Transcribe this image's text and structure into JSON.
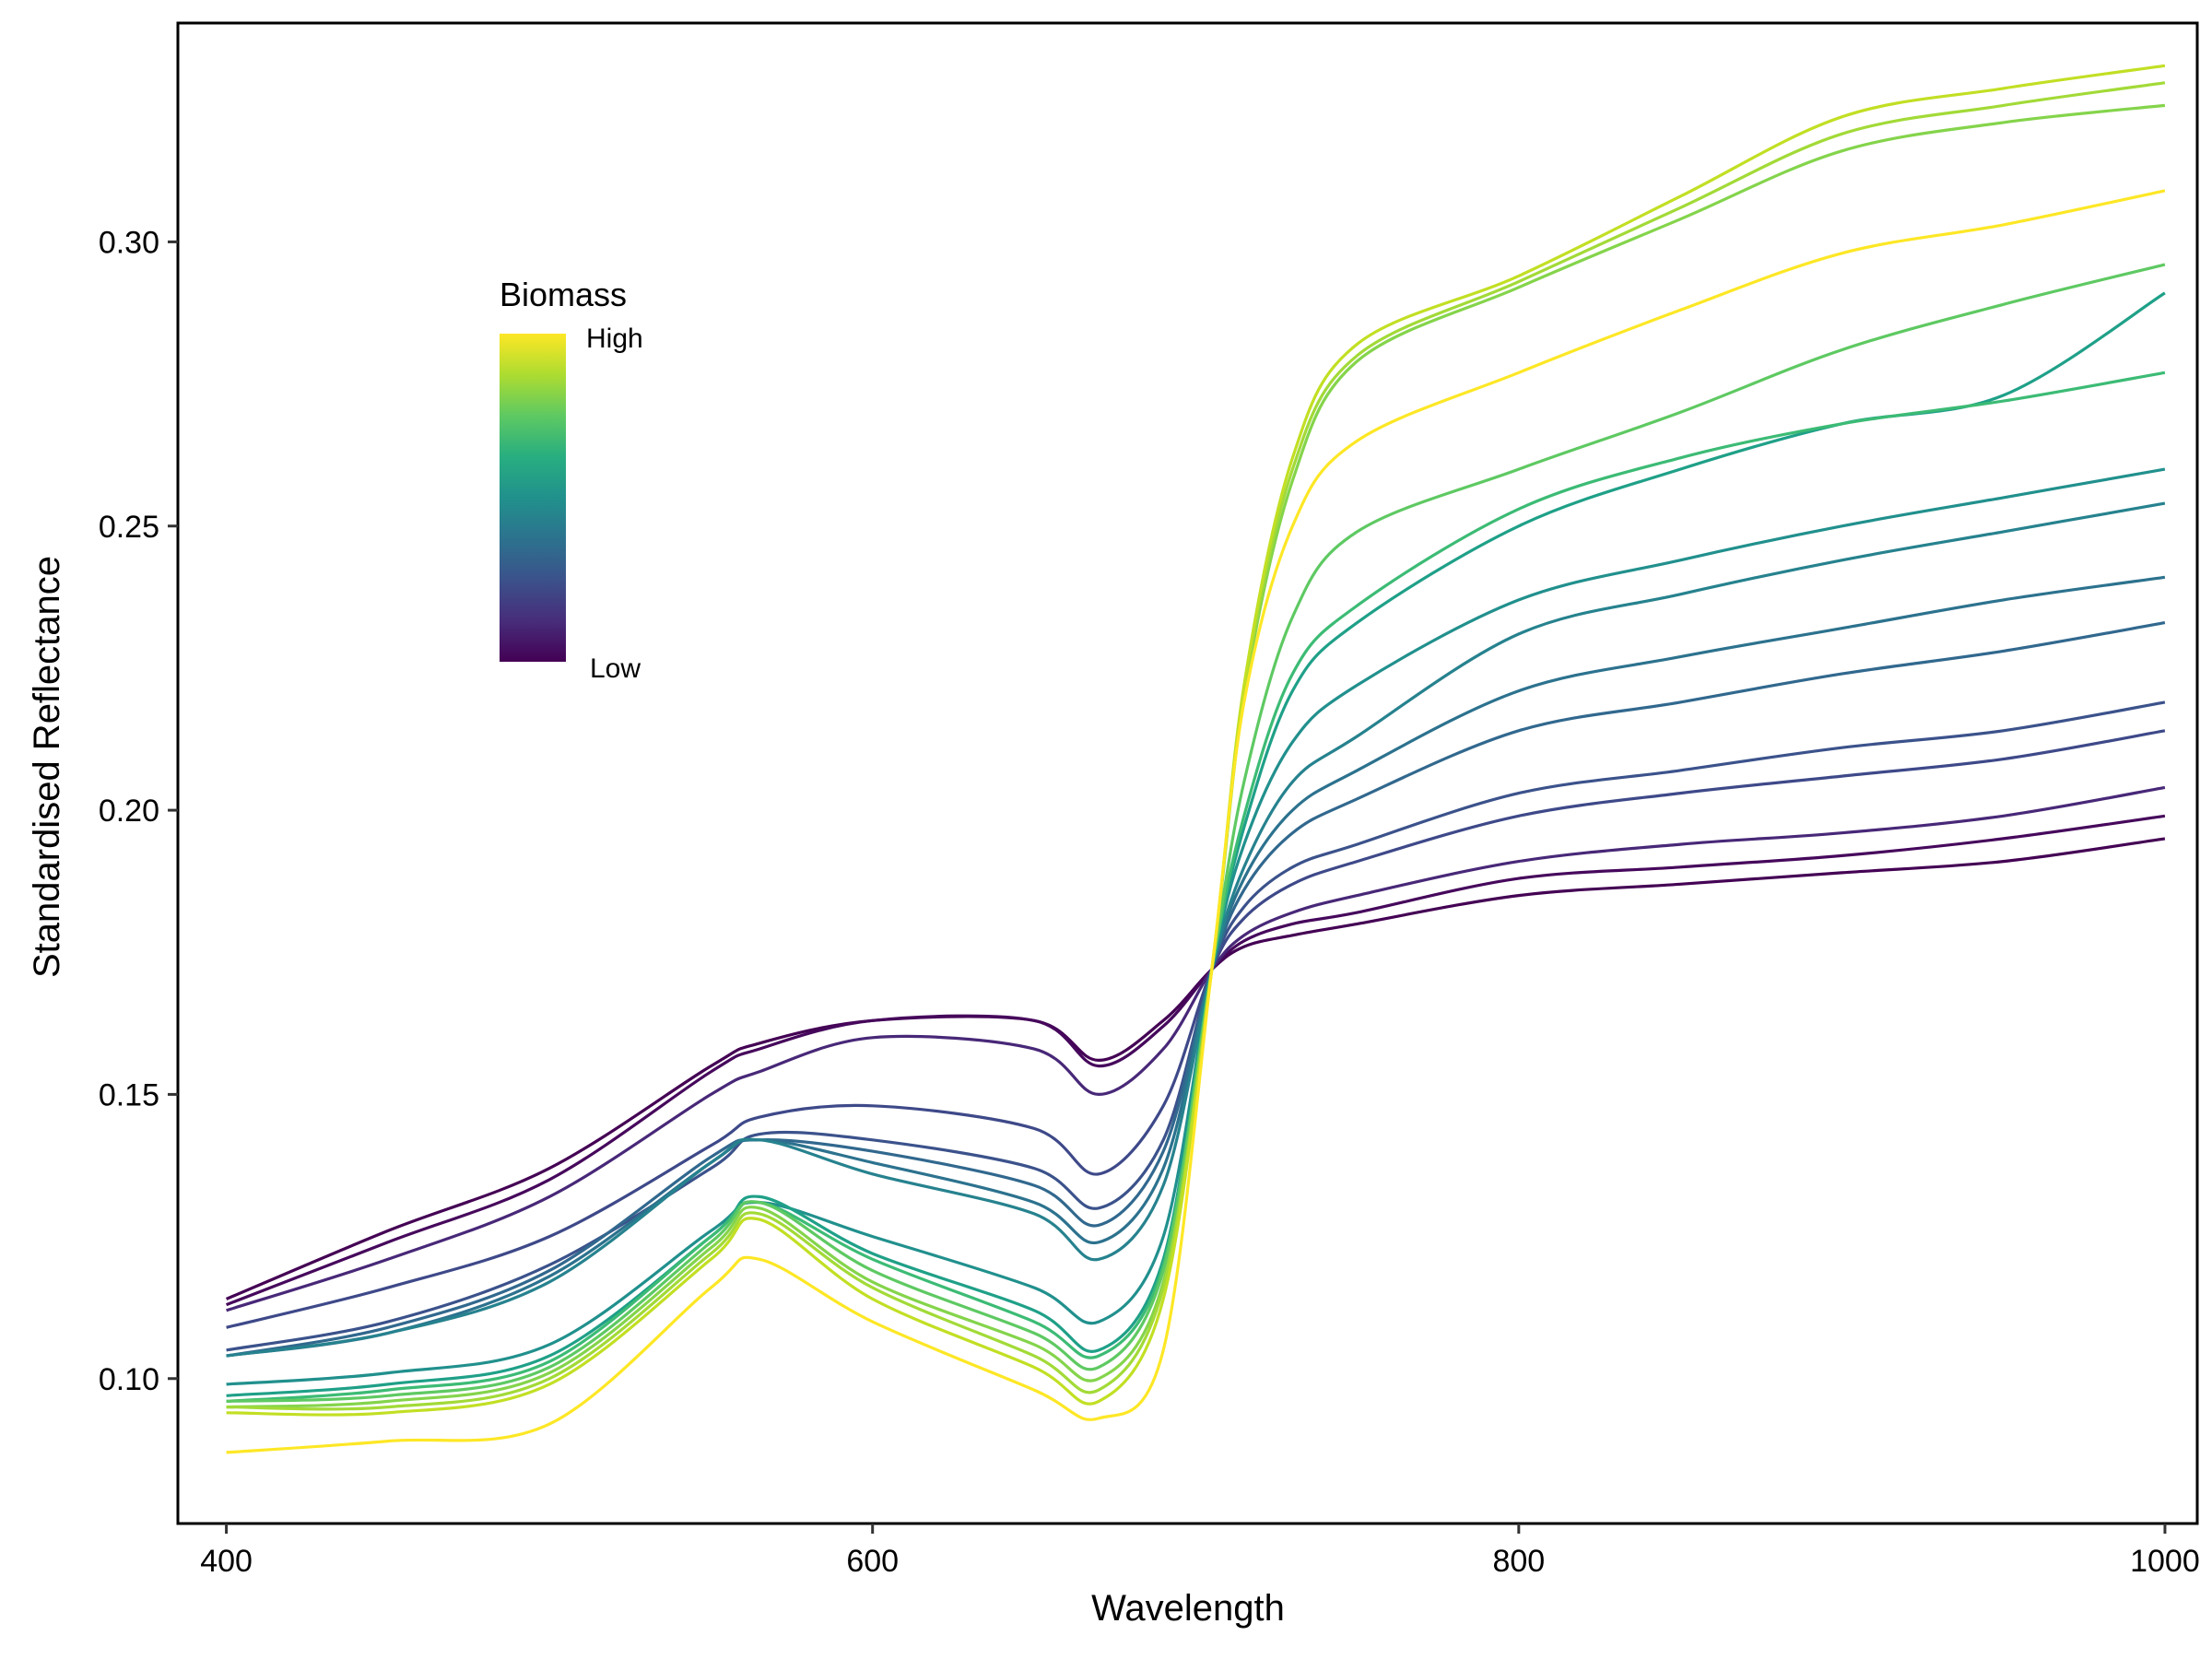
{
  "chart_data": {
    "type": "line",
    "title": "",
    "xlabel": "Wavelength",
    "ylabel": "Standardised Reflectance",
    "xlim": [
      385,
      1010
    ],
    "ylim": [
      0.0745,
      0.3385
    ],
    "x_ticks": [
      400,
      600,
      800,
      1000
    ],
    "x_tick_labels": [
      "400",
      "600",
      "800",
      "1000"
    ],
    "y_ticks": [
      0.1,
      0.15,
      0.2,
      0.25,
      0.3
    ],
    "y_tick_labels": [
      "0.10",
      "0.15",
      "0.20",
      "0.25",
      "0.30"
    ],
    "grid": false,
    "legend": {
      "title": "Biomass",
      "high_label": "High",
      "low_label": "Low",
      "placement": "top-left",
      "colors": [
        "#440154",
        "#472d7b",
        "#3b528b",
        "#2c728e",
        "#21918c",
        "#28ae80",
        "#5ec962",
        "#addc30",
        "#fde725"
      ]
    },
    "x": [
      400,
      450,
      500,
      550,
      565,
      600,
      650,
      670,
      690,
      705,
      715,
      730,
      750,
      800,
      850,
      900,
      950,
      1000
    ],
    "series": [
      {
        "color": "#440154",
        "values": [
          0.114,
          0.126,
          0.137,
          0.155,
          0.159,
          0.163,
          0.163,
          0.156,
          0.163,
          0.172,
          0.176,
          0.178,
          0.18,
          0.185,
          0.187,
          0.189,
          0.191,
          0.195
        ]
      },
      {
        "color": "#46085c",
        "values": [
          0.113,
          0.124,
          0.135,
          0.154,
          0.158,
          0.163,
          0.163,
          0.155,
          0.162,
          0.172,
          0.177,
          0.18,
          0.182,
          0.188,
          0.19,
          0.192,
          0.195,
          0.199
        ]
      },
      {
        "color": "#482878",
        "values": [
          0.112,
          0.121,
          0.132,
          0.15,
          0.154,
          0.16,
          0.158,
          0.15,
          0.158,
          0.172,
          0.178,
          0.182,
          0.185,
          0.191,
          0.194,
          0.196,
          0.199,
          0.204
        ]
      },
      {
        "color": "#3e4989",
        "values": [
          0.109,
          0.116,
          0.125,
          0.141,
          0.146,
          0.148,
          0.144,
          0.136,
          0.148,
          0.172,
          0.181,
          0.187,
          0.191,
          0.199,
          0.203,
          0.206,
          0.209,
          0.214
        ]
      },
      {
        "color": "#3b528b",
        "values": [
          0.105,
          0.11,
          0.12,
          0.137,
          0.143,
          0.142,
          0.137,
          0.13,
          0.142,
          0.172,
          0.183,
          0.19,
          0.194,
          0.203,
          0.207,
          0.211,
          0.214,
          0.219
        ]
      },
      {
        "color": "#31688e",
        "values": [
          0.104,
          0.109,
          0.119,
          0.139,
          0.142,
          0.14,
          0.134,
          0.127,
          0.14,
          0.172,
          0.186,
          0.196,
          0.202,
          0.214,
          0.219,
          0.224,
          0.228,
          0.233
        ]
      },
      {
        "color": "#2c728e",
        "values": [
          0.104,
          0.108,
          0.118,
          0.138,
          0.142,
          0.138,
          0.131,
          0.124,
          0.137,
          0.172,
          0.188,
          0.2,
          0.207,
          0.221,
          0.227,
          0.232,
          0.237,
          0.241
        ]
      },
      {
        "color": "#26828e",
        "values": [
          0.104,
          0.108,
          0.117,
          0.138,
          0.142,
          0.136,
          0.129,
          0.121,
          0.134,
          0.172,
          0.19,
          0.205,
          0.213,
          0.231,
          0.238,
          0.244,
          0.249,
          0.254
        ]
      },
      {
        "color": "#21908d",
        "values": [
          0.099,
          0.101,
          0.106,
          0.126,
          0.131,
          0.125,
          0.116,
          0.11,
          0.125,
          0.172,
          0.194,
          0.212,
          0.222,
          0.237,
          0.244,
          0.25,
          0.255,
          0.26
        ]
      },
      {
        "color": "#1fa088",
        "values": [
          0.097,
          0.099,
          0.104,
          0.125,
          0.132,
          0.122,
          0.112,
          0.105,
          0.121,
          0.172,
          0.197,
          0.221,
          0.233,
          0.25,
          0.26,
          0.268,
          0.273,
          0.291
        ]
      },
      {
        "color": "#3cbb75",
        "values": [
          0.096,
          0.098,
          0.103,
          0.125,
          0.131,
          0.121,
          0.11,
          0.104,
          0.12,
          0.172,
          0.199,
          0.224,
          0.236,
          0.253,
          0.262,
          0.268,
          0.272,
          0.277
        ]
      },
      {
        "color": "#5ec962",
        "values": [
          0.096,
          0.097,
          0.102,
          0.124,
          0.131,
          0.119,
          0.108,
          0.102,
          0.119,
          0.172,
          0.205,
          0.234,
          0.249,
          0.26,
          0.27,
          0.281,
          0.289,
          0.296
        ]
      },
      {
        "color": "#84d44b",
        "values": [
          0.095,
          0.096,
          0.101,
          0.123,
          0.13,
          0.117,
          0.106,
          0.1,
          0.117,
          0.172,
          0.22,
          0.258,
          0.279,
          0.292,
          0.304,
          0.316,
          0.321,
          0.324
        ]
      },
      {
        "color": "#a2da37",
        "values": [
          0.095,
          0.095,
          0.1,
          0.122,
          0.129,
          0.116,
          0.104,
          0.098,
          0.116,
          0.172,
          0.221,
          0.26,
          0.28,
          0.293,
          0.306,
          0.319,
          0.324,
          0.328
        ]
      },
      {
        "color": "#c2df23",
        "values": [
          0.094,
          0.094,
          0.099,
          0.121,
          0.128,
          0.114,
          0.102,
          0.096,
          0.114,
          0.172,
          0.222,
          0.262,
          0.282,
          0.294,
          0.308,
          0.322,
          0.327,
          0.331
        ]
      },
      {
        "color": "#fde725",
        "values": [
          0.087,
          0.089,
          0.092,
          0.116,
          0.121,
          0.11,
          0.098,
          0.093,
          0.105,
          0.172,
          0.219,
          0.25,
          0.265,
          0.277,
          0.288,
          0.298,
          0.303,
          0.309
        ]
      }
    ]
  }
}
